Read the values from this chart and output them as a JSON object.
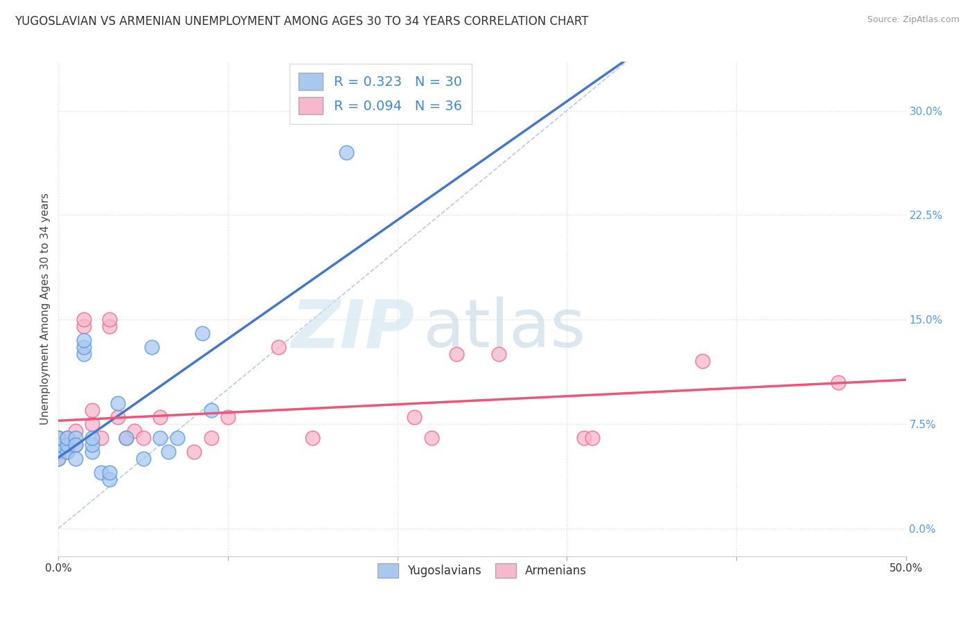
{
  "title": "YUGOSLAVIAN VS ARMENIAN UNEMPLOYMENT AMONG AGES 30 TO 34 YEARS CORRELATION CHART",
  "source": "Source: ZipAtlas.com",
  "ylabel": "Unemployment Among Ages 30 to 34 years",
  "xlim": [
    0.0,
    0.5
  ],
  "ylim": [
    -0.02,
    0.335
  ],
  "xticks": [
    0.0,
    0.1,
    0.2,
    0.3,
    0.4,
    0.5
  ],
  "xticklabels_show": [
    "0.0%",
    "",
    "",
    "",
    "",
    "50.0%"
  ],
  "yticks": [
    0.0,
    0.075,
    0.15,
    0.225,
    0.3
  ],
  "yticklabels": [
    "0.0%",
    "7.5%",
    "15.0%",
    "22.5%",
    "30.0%"
  ],
  "color_yugo": "#a8c8f0",
  "color_armenian": "#f5b8cc",
  "color_yugo_edge": "#5599dd",
  "color_armenian_edge": "#ee6688",
  "color_yugo_line": "#4477cc",
  "color_armenian_line": "#ee5577",
  "color_diagonal": "#aabbcc",
  "watermark_zip": "ZIP",
  "watermark_atlas": "atlas",
  "yugo_scatter_x": [
    0.0,
    0.0,
    0.0,
    0.0,
    0.0,
    0.005,
    0.005,
    0.005,
    0.01,
    0.01,
    0.01,
    0.015,
    0.015,
    0.015,
    0.02,
    0.02,
    0.02,
    0.025,
    0.03,
    0.03,
    0.035,
    0.04,
    0.05,
    0.055,
    0.06,
    0.065,
    0.07,
    0.085,
    0.09,
    0.17
  ],
  "yugo_scatter_y": [
    0.055,
    0.06,
    0.065,
    0.055,
    0.05,
    0.055,
    0.06,
    0.065,
    0.065,
    0.06,
    0.05,
    0.125,
    0.13,
    0.135,
    0.055,
    0.06,
    0.065,
    0.04,
    0.035,
    0.04,
    0.09,
    0.065,
    0.05,
    0.13,
    0.065,
    0.055,
    0.065,
    0.14,
    0.085,
    0.27
  ],
  "armenian_scatter_x": [
    0.0,
    0.0,
    0.0,
    0.0,
    0.0,
    0.0,
    0.0,
    0.005,
    0.005,
    0.01,
    0.01,
    0.015,
    0.015,
    0.02,
    0.02,
    0.025,
    0.03,
    0.03,
    0.035,
    0.04,
    0.045,
    0.05,
    0.06,
    0.08,
    0.09,
    0.1,
    0.13,
    0.15,
    0.21,
    0.22,
    0.235,
    0.26,
    0.31,
    0.315,
    0.38,
    0.46
  ],
  "armenian_scatter_y": [
    0.06,
    0.065,
    0.055,
    0.05,
    0.055,
    0.06,
    0.065,
    0.065,
    0.055,
    0.07,
    0.06,
    0.145,
    0.15,
    0.075,
    0.085,
    0.065,
    0.145,
    0.15,
    0.08,
    0.065,
    0.07,
    0.065,
    0.08,
    0.055,
    0.065,
    0.08,
    0.13,
    0.065,
    0.08,
    0.065,
    0.125,
    0.125,
    0.065,
    0.065,
    0.12,
    0.105
  ],
  "background_color": "#ffffff",
  "grid_color": "#dddddd",
  "title_fontsize": 12,
  "axis_fontsize": 11,
  "tick_fontsize": 11,
  "legend_fontsize": 14
}
